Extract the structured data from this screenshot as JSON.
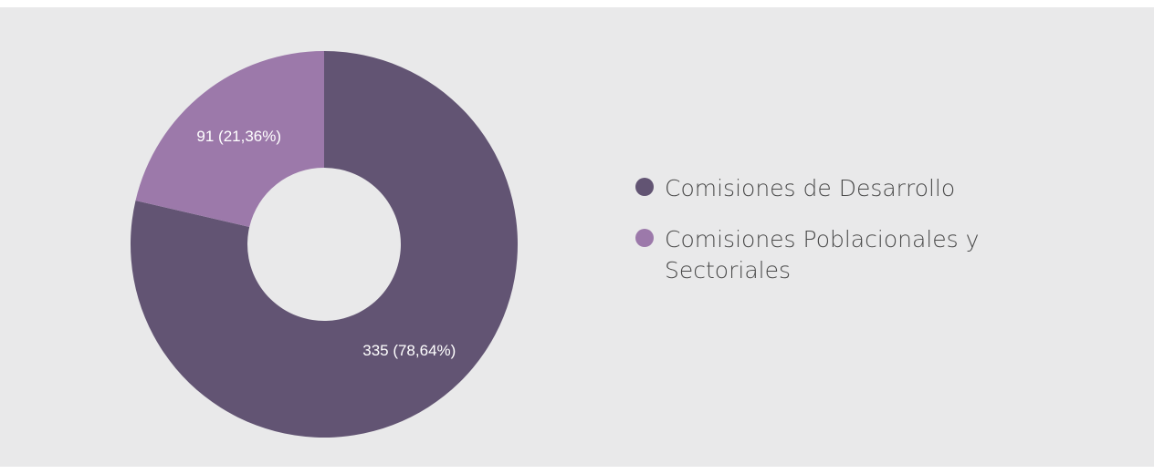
{
  "chart_data": {
    "type": "donut",
    "categories": [
      "Comisiones de Desarrollo",
      "Comisiones Poblacionales y Sectoriales"
    ],
    "values": [
      335,
      91
    ],
    "value_labels": [
      "335 (78,64%)",
      "91 (21,36%)"
    ],
    "colors": [
      "#625473",
      "#9c79aa"
    ],
    "legend": "right"
  }
}
